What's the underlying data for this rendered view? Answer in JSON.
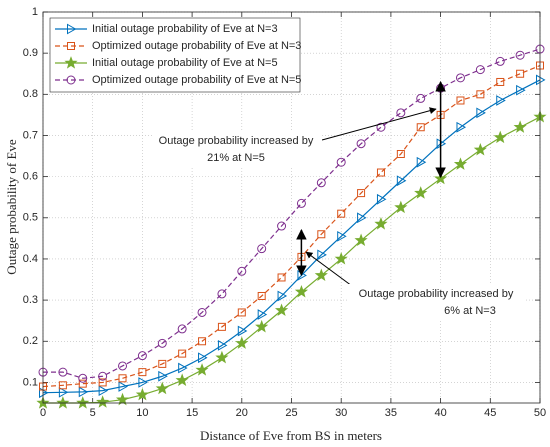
{
  "chart_data": {
    "type": "line",
    "xlabel": "Distance of Eve from BS in meters",
    "ylabel": "Outage probability of Eve",
    "x": [
      0,
      2,
      4,
      6,
      8,
      10,
      12,
      14,
      16,
      18,
      20,
      22,
      24,
      26,
      28,
      30,
      32,
      34,
      36,
      38,
      40,
      42,
      44,
      46,
      48,
      50
    ],
    "xlim": [
      0,
      50
    ],
    "xticks": [
      0,
      5,
      10,
      15,
      20,
      25,
      30,
      35,
      40,
      45,
      50
    ],
    "ylim": [
      0.05,
      1
    ],
    "yticks": [
      0.1,
      0.2,
      0.3,
      0.4,
      0.5,
      0.6,
      0.7,
      0.8,
      0.9,
      1
    ],
    "grid": true,
    "legend": "upper left",
    "series": [
      {
        "name": "Initial outage probability of Eve at N=3",
        "color": "#0072BD",
        "marker": "triangle-right",
        "dash": false,
        "values": [
          0.075,
          0.076,
          0.077,
          0.08,
          0.09,
          0.1,
          0.115,
          0.135,
          0.16,
          0.19,
          0.225,
          0.265,
          0.31,
          0.36,
          0.41,
          0.455,
          0.5,
          0.545,
          0.59,
          0.635,
          0.68,
          0.72,
          0.755,
          0.785,
          0.81,
          0.835
        ]
      },
      {
        "name": "Optimized outage probability of Eve at N=3",
        "color": "#D95319",
        "marker": "square",
        "dash": true,
        "values": [
          0.09,
          0.093,
          0.097,
          0.1,
          0.11,
          0.125,
          0.145,
          0.17,
          0.2,
          0.235,
          0.27,
          0.31,
          0.355,
          0.405,
          0.46,
          0.51,
          0.56,
          0.61,
          0.655,
          0.72,
          0.75,
          0.785,
          0.8,
          0.83,
          0.85,
          0.87
        ]
      },
      {
        "name": "Initial outage probability of Eve at N=5",
        "color": "#77AC30",
        "marker": "star",
        "dash": false,
        "values": [
          0.05,
          0.05,
          0.05,
          0.052,
          0.058,
          0.07,
          0.085,
          0.105,
          0.13,
          0.16,
          0.195,
          0.235,
          0.275,
          0.32,
          0.36,
          0.4,
          0.445,
          0.485,
          0.525,
          0.56,
          0.595,
          0.63,
          0.665,
          0.695,
          0.72,
          0.745
        ]
      },
      {
        "name": "Optimized outage probability of Eve at N=5",
        "color": "#7E2F8E",
        "marker": "circle",
        "dash": true,
        "values": [
          0.125,
          0.125,
          0.11,
          0.115,
          0.14,
          0.165,
          0.195,
          0.23,
          0.27,
          0.315,
          0.37,
          0.425,
          0.48,
          0.535,
          0.585,
          0.635,
          0.68,
          0.72,
          0.755,
          0.79,
          0.815,
          0.84,
          0.86,
          0.88,
          0.895,
          0.91
        ]
      }
    ],
    "annotations": [
      [
        "Outage probability increased by",
        "21% at N=5"
      ],
      [
        "Outage probability increased by",
        "6% at N=3"
      ]
    ]
  }
}
